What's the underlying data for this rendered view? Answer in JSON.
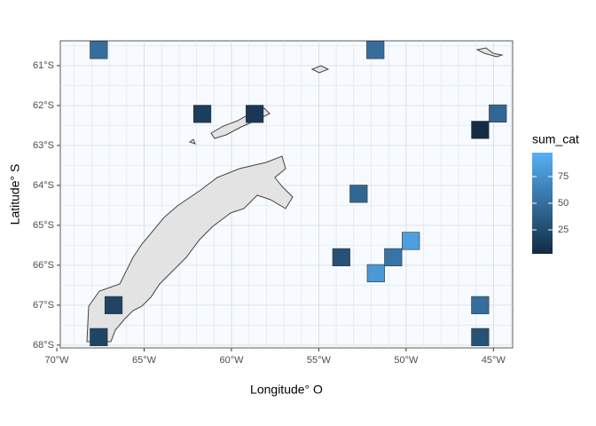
{
  "chart_data": {
    "type": "tile",
    "x_label": "Longitude° O",
    "y_label": "Latitude° S",
    "legend_title": "sum_cat",
    "x": [
      -67.6,
      -51.76,
      -61.67,
      -58.67,
      -44.75,
      -45.76,
      -52.72,
      -49.73,
      -50.74,
      -53.71,
      -51.73,
      -45.76,
      -45.76,
      -66.75,
      -67.6
    ],
    "y": [
      -60.61,
      -60.61,
      -62.21,
      -62.21,
      -62.2,
      -62.61,
      -64.21,
      -65.39,
      -65.8,
      -65.8,
      -66.2,
      -67.0,
      -67.8,
      -67.0,
      -67.8
    ],
    "values": [
      50,
      50,
      15,
      12,
      45,
      3,
      45,
      85,
      55,
      30,
      80,
      50,
      30,
      20,
      20
    ],
    "xlim": [
      -69.8,
      -43.9
    ],
    "ylim": [
      -68.07,
      -60.38
    ],
    "xticks": [
      {
        "value": -70,
        "label": "70°W"
      },
      {
        "value": -65,
        "label": "65°W"
      },
      {
        "value": -60,
        "label": "60°W"
      },
      {
        "value": -55,
        "label": "55°W"
      },
      {
        "value": -50,
        "label": "50°W"
      },
      {
        "value": -45,
        "label": "45°W"
      }
    ],
    "yticks": [
      {
        "value": -61,
        "label": "61°S"
      },
      {
        "value": -62,
        "label": "62°S"
      },
      {
        "value": -63,
        "label": "63°S"
      },
      {
        "value": -64,
        "label": "64°S"
      },
      {
        "value": -65,
        "label": "65°S"
      },
      {
        "value": -66,
        "label": "66°S"
      },
      {
        "value": -67,
        "label": "67°S"
      },
      {
        "value": -68,
        "label": "68°S"
      }
    ],
    "colors": [
      "#132B43",
      "#56B1F7"
    ],
    "colorlim": [
      2.5,
      97.5
    ],
    "colorbar_ticks": [
      25,
      50,
      75
    ],
    "grid": true
  }
}
